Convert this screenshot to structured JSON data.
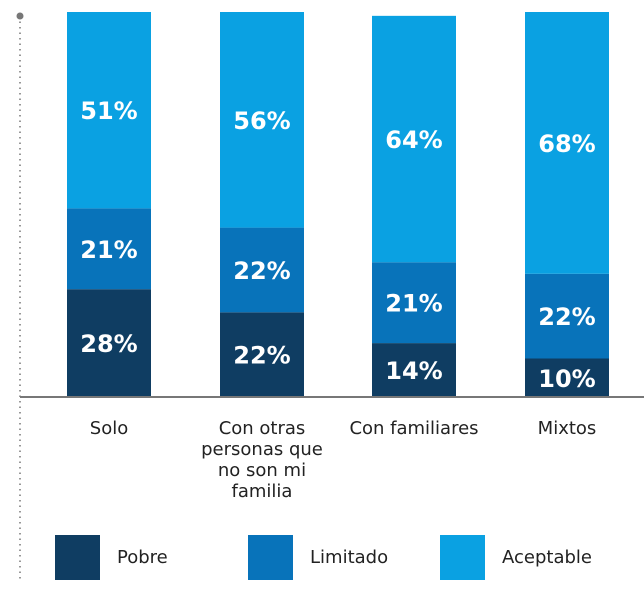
{
  "chart_data": {
    "type": "stacked_bar",
    "categories": [
      "Solo",
      "Con otras personas que no son mi familia",
      "Con familiares",
      "Mixtos"
    ],
    "series": [
      {
        "name": "Pobre",
        "color": "#0f3d62",
        "values": [
          28,
          22,
          14,
          10
        ],
        "value_labels": [
          "28%",
          "22%",
          "14%",
          "10%"
        ]
      },
      {
        "name": "Limitado",
        "color": "#0873ba",
        "values": [
          21,
          22,
          21,
          22
        ],
        "value_labels": [
          "21%",
          "22%",
          "21%",
          "22%"
        ]
      },
      {
        "name": "Aceptable",
        "color": "#0aa1e2",
        "values": [
          51,
          56,
          64,
          68
        ],
        "value_labels": [
          "51%",
          "56%",
          "64%",
          "68%"
        ]
      }
    ],
    "ylim": [
      0,
      100
    ]
  }
}
